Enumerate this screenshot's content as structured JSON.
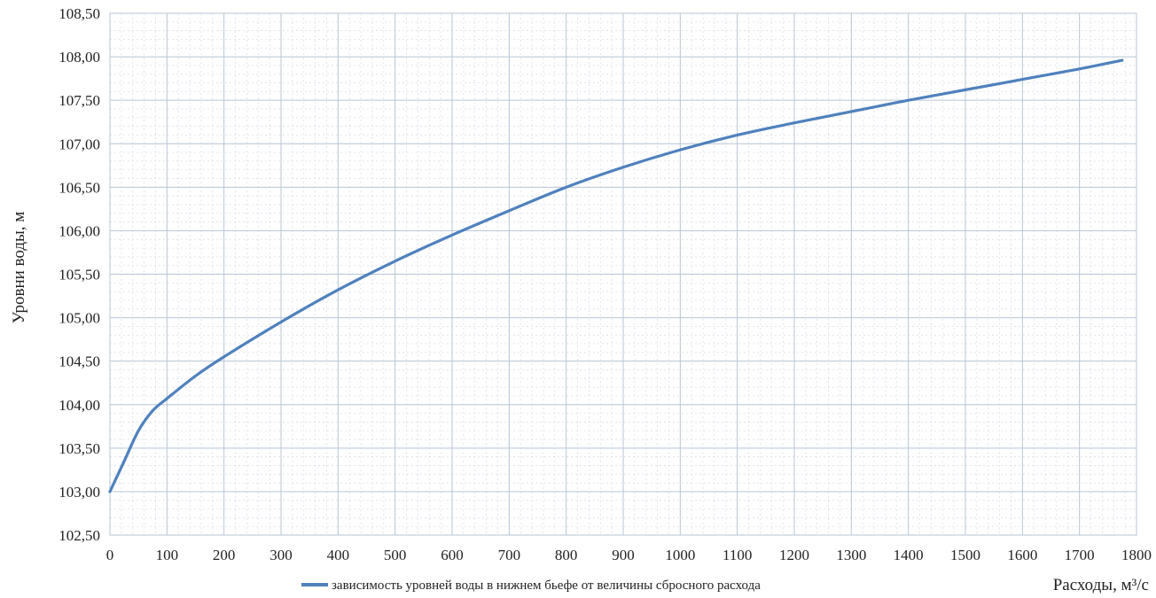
{
  "chart_data": {
    "type": "line",
    "title": "",
    "xlabel": "Расходы, м³/с",
    "ylabel": "Уровни воды, м",
    "xlim": [
      0,
      1800
    ],
    "ylim": [
      102.5,
      108.5
    ],
    "x_ticks": [
      "0",
      "100",
      "200",
      "300",
      "400",
      "500",
      "600",
      "700",
      "800",
      "900",
      "1000",
      "1100",
      "1200",
      "1300",
      "1400",
      "1500",
      "1600",
      "1700",
      "1800"
    ],
    "y_ticks": [
      "102,50",
      "103,00",
      "103,50",
      "104,00",
      "104,50",
      "105,00",
      "105,50",
      "106,00",
      "106,50",
      "107,00",
      "107,50",
      "108,00",
      "108,50"
    ],
    "grid": true,
    "legend_position": "bottom",
    "series": [
      {
        "name": "зависимость уровней воды в нижнем бьефе от величины сбросного расхода",
        "color": "#4f81bd",
        "x": [
          0,
          25,
          50,
          75,
          100,
          150,
          200,
          300,
          400,
          500,
          600,
          700,
          800,
          900,
          1000,
          1100,
          1200,
          1300,
          1400,
          1500,
          1600,
          1700,
          1775
        ],
        "y": [
          103.0,
          103.35,
          103.7,
          103.93,
          104.07,
          104.33,
          104.55,
          104.95,
          105.32,
          105.65,
          105.95,
          106.23,
          106.5,
          106.73,
          106.93,
          107.1,
          107.24,
          107.37,
          107.5,
          107.62,
          107.74,
          107.86,
          107.96
        ]
      }
    ]
  }
}
